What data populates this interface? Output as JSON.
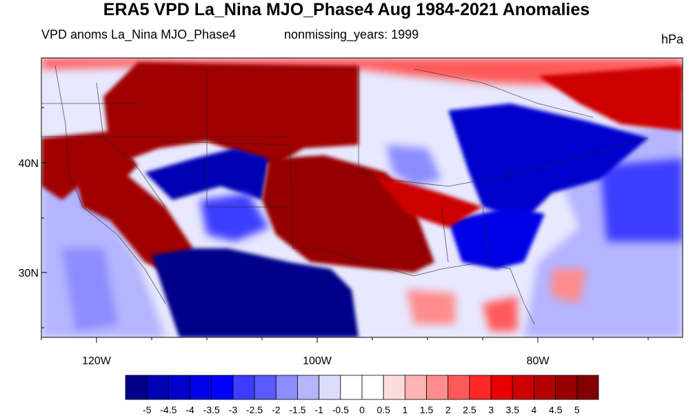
{
  "title": "ERA5 VPD La_Nina MJO_Phase4 Aug 1984-2021 Anomalies",
  "subtitle_left": "VPD anoms La_Nina MJO_Phase4",
  "subtitle_mid": "nonmissing_years: 1999",
  "units": "hPa",
  "lat_labels": [
    "40N",
    "30N"
  ],
  "lon_labels": [
    "120W",
    "100W",
    "80W"
  ],
  "colorbar": {
    "labels": [
      "-5",
      "-4.5",
      "-4",
      "-3.5",
      "-3",
      "-2.5",
      "-2",
      "-1.5",
      "-1",
      "-0.5",
      "0",
      "0.5",
      "1",
      "1.5",
      "2",
      "2.5",
      "3",
      "3.5",
      "4",
      "4.5",
      "5"
    ],
    "colors": [
      "#00008b",
      "#0000b4",
      "#0000cd",
      "#0000e6",
      "#0000ff",
      "#3c3cff",
      "#5a5aff",
      "#8c8cff",
      "#b4b4ff",
      "#dcdcff",
      "#ffffff",
      "#ffffff",
      "#ffdcdc",
      "#ffb4b4",
      "#ff8c8c",
      "#ff5a5a",
      "#ff2828",
      "#e60000",
      "#cd0000",
      "#b40000",
      "#960000",
      "#820000"
    ]
  },
  "map_regions": [
    {
      "name": "pacific-northwest-hot",
      "color": "#a00000"
    },
    {
      "name": "california-hot",
      "color": "#a00000"
    },
    {
      "name": "great-basin-cold",
      "color": "#0000b4"
    },
    {
      "name": "southern-plains-hot",
      "color": "#960000"
    },
    {
      "name": "texas-cold",
      "color": "#00008b"
    },
    {
      "name": "east-cold",
      "color": "#0000cd"
    },
    {
      "name": "southeast-cold",
      "color": "#0000e6"
    }
  ]
}
